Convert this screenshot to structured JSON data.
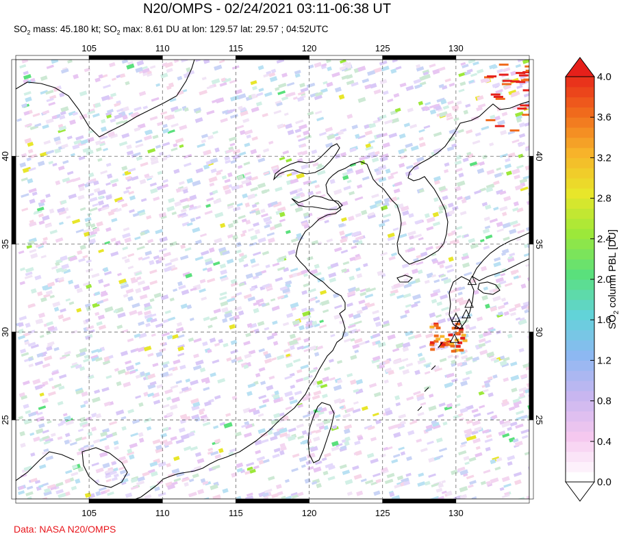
{
  "title": "N20/OMPS - 02/24/2021 03:11-06:38 UT",
  "subtitle": {
    "mass_prefix": "SO",
    "mass_sub": "2",
    "mass_text": " mass: 45.180 kt; SO",
    "max_sub": "2",
    "max_text": " max: 8.61 DU at lon: 129.57 lat: 29.57 ; 04:52UTC"
  },
  "credit": "Data: NASA N20/OMPS",
  "map": {
    "lon_ticks": [
      "105",
      "110",
      "115",
      "120",
      "125",
      "130"
    ],
    "lat_ticks": [
      "40",
      "35",
      "30",
      "25"
    ],
    "lon_values": [
      105,
      110,
      115,
      120,
      125,
      130
    ],
    "lat_values": [
      40,
      35,
      30,
      25
    ],
    "lon_range": [
      100,
      135
    ],
    "lat_range": [
      20.5,
      45.5
    ],
    "volcano_marker": "triangle-icon"
  },
  "colorbar": {
    "label_prefix": "SO",
    "label_sub": "2",
    "label_suffix": " column PBL [DU]",
    "ticks": [
      "4.0",
      "3.6",
      "3.2",
      "2.8",
      "2.4",
      "2.0",
      "1.6",
      "1.2",
      "0.8",
      "0.4",
      "0.0"
    ],
    "colors": [
      "#ffffff",
      "#f5c8ef",
      "#c8b6f0",
      "#8db8f2",
      "#62d3d8",
      "#5ae07c",
      "#9ce83a",
      "#e8e62a",
      "#f7b32a",
      "#f06a1c",
      "#e6201a"
    ]
  }
}
